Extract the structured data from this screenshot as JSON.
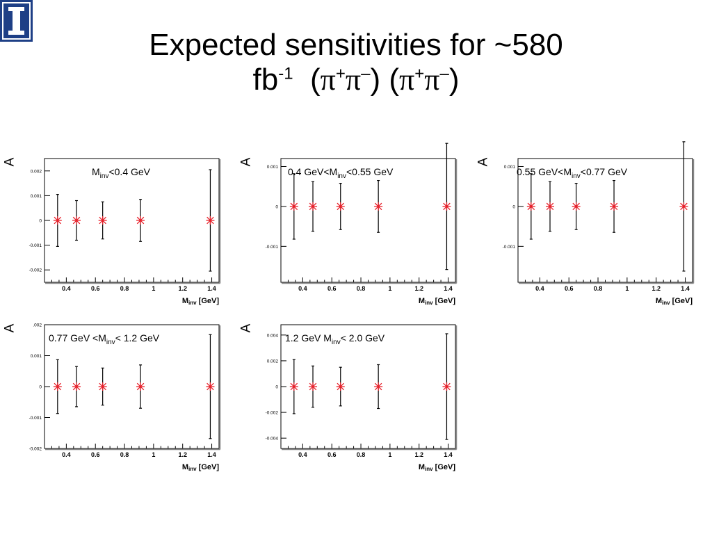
{
  "slide": {
    "title_line1": "Expected sensitivities for ~580",
    "title_fb": "fb",
    "title_exp": "-1",
    "title_pi": "π",
    "title_plus": "+",
    "title_minus": "–",
    "logo_letter": "I"
  },
  "colors": {
    "marker": "#e8202a",
    "logo_blue": "#1e3f86",
    "axis": "#000000"
  },
  "chart_data": [
    {
      "type": "scatter",
      "range_label": {
        "pre": "M",
        "sub": "inv",
        "post": "<0.4 GeV"
      },
      "ylabel": "A",
      "xlabel": {
        "main": "M",
        "sub": "inv",
        "unit": " [GeV]"
      },
      "xlim": [
        0.25,
        1.45
      ],
      "ylim": [
        -0.0025,
        0.0025
      ],
      "xticks": [
        0.4,
        0.6,
        0.8,
        1.0,
        1.2,
        1.4
      ],
      "xtick_labels": [
        "0.4",
        "0.6",
        "0.8",
        "1",
        "1.2",
        "1.4"
      ],
      "yticks": [
        -0.002,
        -0.001,
        0,
        0.001,
        0.002
      ],
      "ytick_labels": [
        "-0.002",
        "-0.001",
        "0",
        "0.001",
        "0.002"
      ],
      "points": [
        {
          "x": 0.34,
          "y": 0,
          "err": 0.00105
        },
        {
          "x": 0.47,
          "y": 0,
          "err": 0.0008
        },
        {
          "x": 0.65,
          "y": 0,
          "err": 0.00075
        },
        {
          "x": 0.91,
          "y": 0,
          "err": 0.00085
        },
        {
          "x": 1.39,
          "y": 0,
          "err": 0.00205
        }
      ]
    },
    {
      "type": "scatter",
      "range_label": {
        "pre": "0.4 GeV<M",
        "sub": "inv",
        "post": "<0.55 GeV"
      },
      "ylabel": "A",
      "xlabel": {
        "main": "M",
        "sub": "inv",
        "unit": " [GeV]"
      },
      "xlim": [
        0.25,
        1.45
      ],
      "ylim": [
        -0.0019,
        0.0012
      ],
      "xticks": [
        0.4,
        0.6,
        0.8,
        1.0,
        1.2,
        1.4
      ],
      "xtick_labels": [
        "0.4",
        "0.6",
        "0.8",
        "1",
        "1.2",
        "1.4"
      ],
      "yticks": [
        -0.001,
        0,
        0.001
      ],
      "ytick_labels": [
        "-0.001",
        "0",
        "0.001"
      ],
      "points": [
        {
          "x": 0.34,
          "y": 0,
          "err": 0.00082
        },
        {
          "x": 0.47,
          "y": 0,
          "err": 0.00062
        },
        {
          "x": 0.66,
          "y": 0,
          "err": 0.00058
        },
        {
          "x": 0.92,
          "y": 0,
          "err": 0.00065
        },
        {
          "x": 1.39,
          "y": 0,
          "err": 0.00158
        }
      ]
    },
    {
      "type": "scatter",
      "range_label": {
        "pre": "0.55 GeV<M",
        "sub": "inv",
        "post": "<0.77 GeV"
      },
      "ylabel": "A",
      "xlabel": {
        "main": "M",
        "sub": "inv",
        "unit": " [GeV]"
      },
      "xlim": [
        0.25,
        1.45
      ],
      "ylim": [
        -0.0019,
        0.0012
      ],
      "xticks": [
        0.4,
        0.6,
        0.8,
        1.0,
        1.2,
        1.4
      ],
      "xtick_labels": [
        "0.4",
        "0.6",
        "0.8",
        "1",
        "1.2",
        "1.4"
      ],
      "yticks": [
        -0.001,
        0,
        0.001
      ],
      "ytick_labels": [
        "-0.001",
        "0",
        "0.001"
      ],
      "points": [
        {
          "x": 0.34,
          "y": 0,
          "err": 0.00082
        },
        {
          "x": 0.47,
          "y": 0,
          "err": 0.00062
        },
        {
          "x": 0.65,
          "y": 0,
          "err": 0.00058
        },
        {
          "x": 0.91,
          "y": 0,
          "err": 0.00065
        },
        {
          "x": 1.39,
          "y": 0,
          "err": 0.00162
        }
      ]
    },
    {
      "type": "scatter",
      "range_label": {
        "pre": "0.77 GeV <M",
        "sub": "inv",
        "post": "< 1.2 GeV"
      },
      "ylabel": "A",
      "xlabel": {
        "main": "M",
        "sub": "inv",
        "unit": " [GeV]"
      },
      "xlim": [
        0.25,
        1.45
      ],
      "ylim": [
        -0.002,
        0.002
      ],
      "xticks": [
        0.4,
        0.6,
        0.8,
        1.0,
        1.2,
        1.4
      ],
      "xtick_labels": [
        "0.4",
        "0.6",
        "0.8",
        "1",
        "1.2",
        "1.4"
      ],
      "yticks": [
        -0.002,
        -0.001,
        0,
        0.001,
        0.002
      ],
      "ytick_labels": [
        "-0.002",
        "-0.001",
        "0",
        "0.001",
        ".002"
      ],
      "points": [
        {
          "x": 0.34,
          "y": 0,
          "err": 0.00087
        },
        {
          "x": 0.47,
          "y": 0,
          "err": 0.00065
        },
        {
          "x": 0.65,
          "y": 0,
          "err": 0.0006
        },
        {
          "x": 0.91,
          "y": 0,
          "err": 0.0007
        },
        {
          "x": 1.39,
          "y": 0,
          "err": 0.00168
        }
      ]
    },
    {
      "type": "scatter",
      "range_label": {
        "pre": "1.2 GeV M",
        "sub": "inv",
        "post": "< 2.0 GeV"
      },
      "ylabel": "A",
      "xlabel": {
        "main": "M",
        "sub": "inv",
        "unit": " [GeV]"
      },
      "xlim": [
        0.25,
        1.45
      ],
      "ylim": [
        -0.0048,
        0.0048
      ],
      "xticks": [
        0.4,
        0.6,
        0.8,
        1.0,
        1.2,
        1.4
      ],
      "xtick_labels": [
        "0.4",
        "0.6",
        "0.8",
        "1",
        "1.2",
        "1.4"
      ],
      "yticks": [
        -0.004,
        -0.002,
        0,
        0.002,
        0.004
      ],
      "ytick_labels": [
        "-0.004",
        "-0.002",
        "0",
        "0.002",
        "0.004"
      ],
      "points": [
        {
          "x": 0.34,
          "y": 0,
          "err": 0.0021
        },
        {
          "x": 0.47,
          "y": 0,
          "err": 0.0016
        },
        {
          "x": 0.66,
          "y": 0,
          "err": 0.0015
        },
        {
          "x": 0.92,
          "y": 0,
          "err": 0.0017
        },
        {
          "x": 1.39,
          "y": 0,
          "err": 0.0041
        }
      ]
    }
  ]
}
